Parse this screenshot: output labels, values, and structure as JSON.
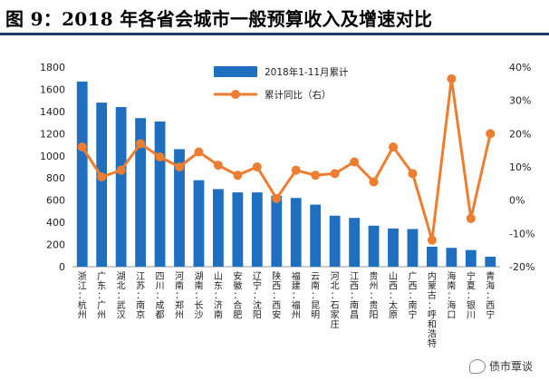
{
  "title": "图 9：2018 年各省会城市一般预算收入及增速对比",
  "watermark": "债市覃谈",
  "colors": {
    "bar": "#1f6fc0",
    "line": "#ed7d31",
    "rule": "#1f3864"
  },
  "chart_data": {
    "type": "bar",
    "title": "图 9：2018 年各省会城市一般预算收入及增速对比",
    "categories": [
      "浙江：杭州",
      "广东：广州",
      "湖北：武汉",
      "江苏：南京",
      "四川：成都",
      "河南：郑州",
      "湖南：长沙",
      "山东：济南",
      "安徽：合肥",
      "辽宁：沈阳",
      "陕西：西安",
      "福建：福州",
      "云南：昆明",
      "河北：石家庄",
      "江西：南昌",
      "贵州：贵阳",
      "山西：太原",
      "广西：南宁",
      "内蒙古：呼和浩特",
      "海南：海口",
      "宁夏：银川",
      "青海：西宁"
    ],
    "series": [
      {
        "name": "2018年1-11月累计",
        "type": "bar",
        "axis": "left",
        "values": [
          1670,
          1480,
          1440,
          1340,
          1310,
          1060,
          780,
          700,
          670,
          670,
          640,
          620,
          560,
          460,
          440,
          370,
          345,
          340,
          180,
          170,
          150,
          90
        ]
      },
      {
        "name": "累计同比（右）",
        "type": "line",
        "axis": "right",
        "unit": "%",
        "values": [
          16,
          7,
          9,
          17,
          13,
          10,
          14.5,
          10.5,
          7.5,
          10,
          0.5,
          9,
          7.5,
          8,
          11.5,
          5.5,
          16,
          8,
          -12,
          36.5,
          -5.5,
          20
        ]
      }
    ],
    "ylim": [
      0,
      1800
    ],
    "yticks": [
      0,
      200,
      400,
      600,
      800,
      1000,
      1200,
      1400,
      1600,
      1800
    ],
    "y2lim": [
      -20,
      40
    ],
    "y2ticks": [
      "-20%",
      "-10%",
      "0%",
      "10%",
      "20%",
      "30%",
      "40%"
    ],
    "legend": "top-center",
    "grid": false
  }
}
